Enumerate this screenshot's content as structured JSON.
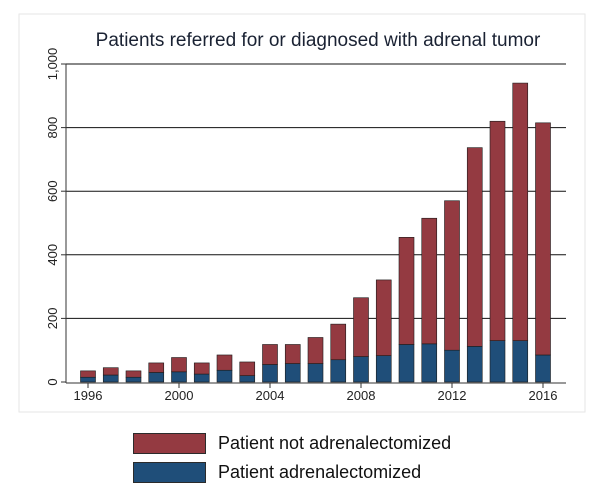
{
  "chart_data": {
    "type": "bar",
    "stacked": true,
    "title": "Patients referred for or diagnosed with adrenal tumor",
    "xlabel": "",
    "ylabel": "",
    "categories": [
      "1996",
      "1997",
      "1998",
      "1999",
      "2000",
      "2001",
      "2002",
      "2003",
      "2004",
      "2005",
      "2006",
      "2007",
      "2008",
      "2009",
      "2010",
      "2011",
      "2012",
      "2013",
      "2014",
      "2015",
      "2016"
    ],
    "x_tick_labels": [
      "1996",
      "2000",
      "2004",
      "2008",
      "2012",
      "2016"
    ],
    "y_tick_labels": [
      "0",
      "200",
      "400",
      "600",
      "800",
      "1,000"
    ],
    "ylim": [
      0,
      1000
    ],
    "grid": true,
    "legend_position": "bottom",
    "series": [
      {
        "name": "Patient adrenalectomized",
        "color": "#1f4e79",
        "values": [
          15,
          22,
          15,
          30,
          32,
          25,
          37,
          20,
          55,
          58,
          58,
          70,
          80,
          83,
          118,
          120,
          100,
          112,
          130,
          130,
          85
        ]
      },
      {
        "name": "Patient not adrenalectomized",
        "color": "#943a41",
        "values": [
          20,
          23,
          20,
          30,
          45,
          35,
          48,
          43,
          63,
          60,
          82,
          112,
          185,
          238,
          337,
          395,
          470,
          625,
          690,
          810,
          730
        ]
      }
    ]
  }
}
